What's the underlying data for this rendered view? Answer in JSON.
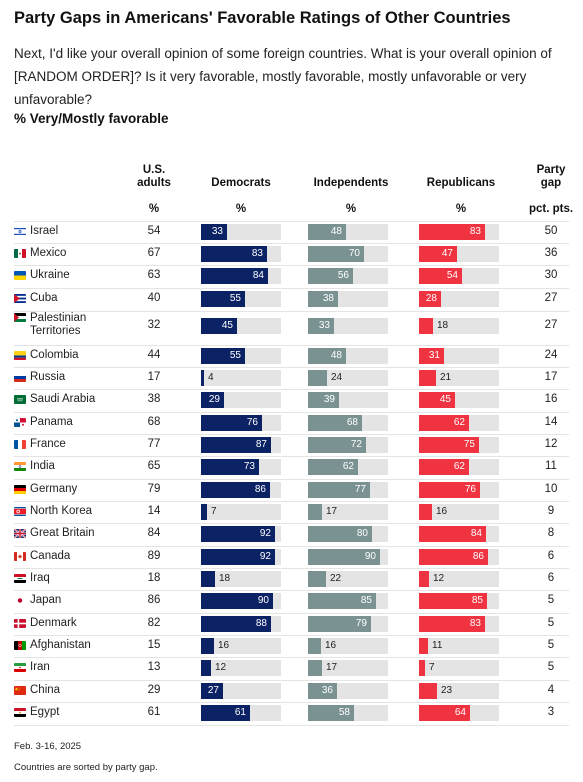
{
  "title": "Party Gaps in Americans' Favorable Ratings of Other Countries",
  "question": "Next, I'd like your overall opinion of some foreign countries. What is your overall opinion of [RANDOM ORDER]? Is it very favorable, mostly favorable, mostly unfavorable or very unfavorable?",
  "measure": "% Very/Mostly favorable",
  "columns": {
    "us_adults": "U.S. adults",
    "democrats": "Democrats",
    "independents": "Independents",
    "republicans": "Republicans",
    "gap": "Party gap",
    "unit_pct": "%",
    "unit_gap": "pct. pts."
  },
  "colors": {
    "democrats": "#0b2265",
    "independents": "#7a9392",
    "republicans": "#ef3340",
    "track": "#e4e4e4"
  },
  "footer": {
    "date": "Feb. 3-16, 2025",
    "note": "Countries are sorted by party gap."
  },
  "chart_data": {
    "type": "bar",
    "title": "Party Gaps in Americans' Favorable Ratings of Other Countries",
    "xlim": [
      0,
      100
    ],
    "categories": [
      "Israel",
      "Mexico",
      "Ukraine",
      "Cuba",
      "Palestinian Territories",
      "Colombia",
      "Russia",
      "Saudi Arabia",
      "Panama",
      "France",
      "India",
      "Germany",
      "North Korea",
      "Great Britain",
      "Canada",
      "Iraq",
      "Japan",
      "Denmark",
      "Afghanistan",
      "Iran",
      "China",
      "Egypt"
    ],
    "flags": [
      "israel-flag-icon",
      "mexico-flag-icon",
      "ukraine-flag-icon",
      "cuba-flag-icon",
      "palestine-flag-icon",
      "colombia-flag-icon",
      "russia-flag-icon",
      "saudi-arabia-flag-icon",
      "panama-flag-icon",
      "france-flag-icon",
      "india-flag-icon",
      "germany-flag-icon",
      "north-korea-flag-icon",
      "great-britain-flag-icon",
      "canada-flag-icon",
      "iraq-flag-icon",
      "japan-flag-icon",
      "denmark-flag-icon",
      "afghanistan-flag-icon",
      "iran-flag-icon",
      "china-flag-icon",
      "egypt-flag-icon"
    ],
    "us_adults": [
      54,
      67,
      63,
      40,
      32,
      44,
      17,
      38,
      68,
      77,
      65,
      79,
      14,
      84,
      89,
      18,
      86,
      82,
      15,
      13,
      29,
      61
    ],
    "series": [
      {
        "name": "Democrats",
        "values": [
          33,
          83,
          84,
          55,
          45,
          55,
          4,
          29,
          76,
          87,
          73,
          86,
          7,
          92,
          92,
          18,
          90,
          88,
          16,
          12,
          27,
          61
        ]
      },
      {
        "name": "Independents",
        "values": [
          48,
          70,
          56,
          38,
          33,
          48,
          24,
          39,
          68,
          72,
          62,
          77,
          17,
          80,
          90,
          22,
          85,
          79,
          16,
          17,
          36,
          58
        ]
      },
      {
        "name": "Republicans",
        "values": [
          83,
          47,
          54,
          28,
          18,
          31,
          21,
          45,
          62,
          75,
          62,
          76,
          16,
          84,
          86,
          12,
          85,
          83,
          11,
          7,
          23,
          64
        ]
      }
    ],
    "party_gap": [
      50,
      36,
      30,
      27,
      27,
      24,
      17,
      16,
      14,
      12,
      11,
      10,
      9,
      8,
      6,
      6,
      5,
      5,
      5,
      5,
      4,
      3
    ]
  }
}
